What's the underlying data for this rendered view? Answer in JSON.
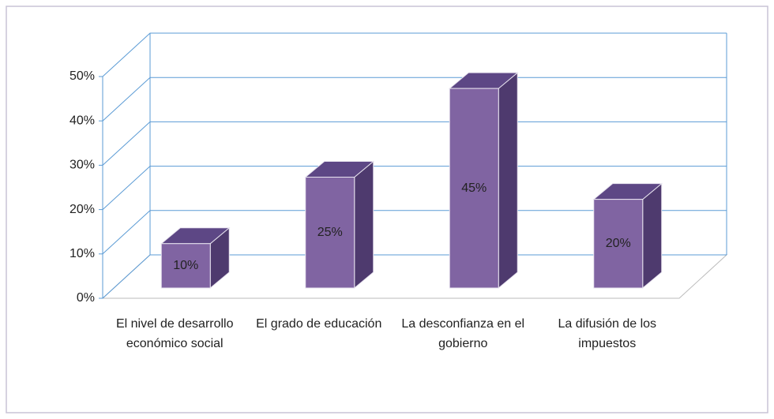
{
  "chart_data": {
    "type": "bar3d",
    "categories": [
      "El nivel de desarrollo económico social",
      "El grado de educación",
      "La desconfianza en el gobierno",
      "La difusión de los impuestos"
    ],
    "values": [
      10,
      25,
      45,
      20
    ],
    "value_labels": [
      "10%",
      "25%",
      "45%",
      "20%"
    ],
    "color": "#8064a2",
    "ylim": [
      0,
      50
    ],
    "yticks": [
      {
        "value": 0,
        "label": "0%"
      },
      {
        "value": 10,
        "label": "10%"
      },
      {
        "value": 20,
        "label": "20%"
      },
      {
        "value": 30,
        "label": "30%"
      },
      {
        "value": 40,
        "label": "40%"
      },
      {
        "value": 50,
        "label": "50%"
      }
    ],
    "grid": true
  }
}
